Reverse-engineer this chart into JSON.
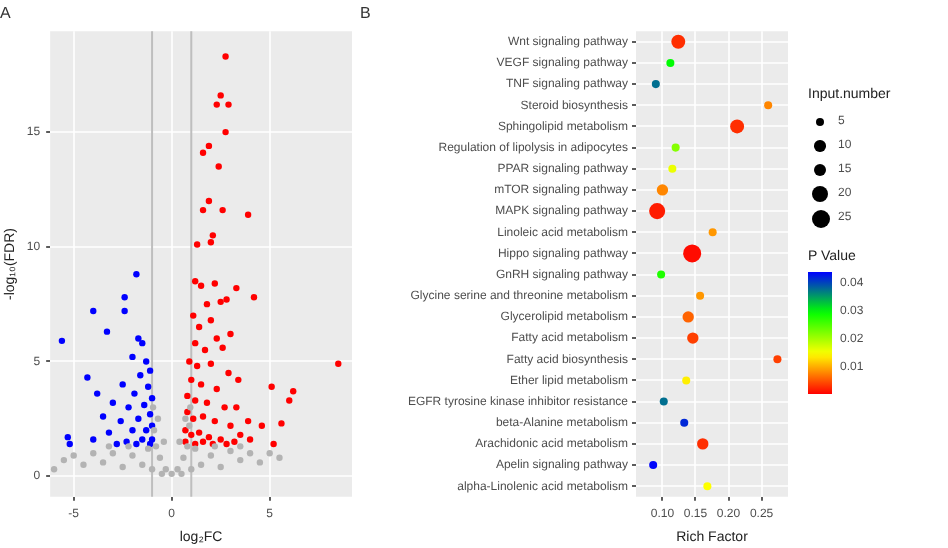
{
  "chart_data": [
    {
      "type": "scatter",
      "title": "A",
      "xlabel": "log₂FC",
      "ylabel": "-log₁₀(FDR)",
      "xlim": [
        -6.2,
        9.2
      ],
      "xticks": [
        -5,
        0,
        5
      ],
      "ylim": [
        -0.9,
        19.4
      ],
      "yticks": [
        0,
        5,
        10,
        15
      ],
      "grid": true,
      "legend": false,
      "marker": "circle",
      "ref_lines": [
        {
          "axis": "x",
          "value": -1,
          "color": "#bebebe"
        },
        {
          "axis": "x",
          "value": 1,
          "color": "#bebebe"
        }
      ],
      "series": [
        {
          "color": "#b3b3b3",
          "x": [
            0,
            -0.3,
            0.3,
            -0.6,
            0.6,
            -0.8,
            0.8,
            -0.9,
            0.9,
            -0.95,
            0.95,
            -1.5,
            1.5,
            -2,
            2,
            -2.5,
            2.5,
            -3,
            3,
            -3.5,
            3.5,
            -4,
            4,
            -4.5,
            4.5,
            -5,
            5,
            -1.2,
            1.2,
            -0.5,
            0.5,
            -1,
            1,
            -2.2,
            2.2,
            -3.2,
            3.5,
            5.5,
            -5.5,
            -0.4,
            0.4,
            -0.7,
            0.7,
            -6
          ],
          "values": [
            0.1,
            0.3,
            0.3,
            0.8,
            0.8,
            1.3,
            1.3,
            2.0,
            2.2,
            3.0,
            3.0,
            0.5,
            0.5,
            0.9,
            0.9,
            0.4,
            0.4,
            1.0,
            1.1,
            0.6,
            0.7,
            1.0,
            1.0,
            0.5,
            0.6,
            0.9,
            1.0,
            1.2,
            1.2,
            0.1,
            0.1,
            0.3,
            0.3,
            1.3,
            1.3,
            1.3,
            1.3,
            0.8,
            0.7,
            1.5,
            1.5,
            2.5,
            2.5,
            0.3
          ]
        },
        {
          "color": "#0000ff",
          "x": [
            -5.6,
            -4.0,
            -3.3,
            -2.4,
            -2.4,
            -1.8,
            -4.3,
            -3.8,
            -5.3,
            -5.2,
            -1.7,
            -1.5,
            -2.0,
            -1.3,
            -1.1,
            -1.6,
            -2.5,
            -1.2,
            -1.9,
            -3.0,
            -1.0,
            -1.4,
            -2.2,
            -3.5,
            -1.1,
            -1.7,
            -2.6,
            -1.0,
            -1.3,
            -2.0,
            -3.2,
            -1.0,
            -1.5,
            -2.3,
            -4.0,
            -1.1,
            -1.8,
            -2.8
          ],
          "values": [
            5.9,
            7.2,
            6.3,
            7.8,
            7.2,
            8.8,
            4.3,
            3.6,
            1.7,
            1.4,
            6.0,
            5.8,
            5.2,
            5.0,
            4.6,
            4.4,
            4.0,
            3.9,
            3.6,
            3.2,
            3.4,
            3.1,
            3.0,
            2.6,
            2.7,
            2.5,
            2.4,
            2.2,
            2.0,
            2.0,
            1.9,
            1.6,
            1.6,
            1.5,
            1.6,
            1.4,
            1.4,
            1.4
          ]
        },
        {
          "color": "#ff0000",
          "x": [
            2.75,
            2.5,
            2.3,
            2.9,
            2.75,
            1.9,
            1.6,
            2.4,
            1.9,
            1.6,
            2.6,
            3.9,
            2.1,
            1.3,
            2.0,
            3.3,
            4.2,
            8.5,
            5.1,
            6.2,
            6.0,
            5.6,
            5.2,
            4.6,
            3.9,
            1.2,
            1.5,
            2.2,
            1.8,
            2.5,
            2.8,
            1.1,
            1.4,
            2.0,
            2.3,
            3.0,
            1.2,
            1.7,
            2.6,
            0.9,
            1.3,
            2.0,
            2.9,
            3.4,
            1.0,
            1.5,
            2.3,
            0.8,
            1.2,
            1.8,
            2.7,
            3.3,
            0.8,
            1.1,
            1.6,
            2.2,
            3.0,
            0.7,
            1.0,
            1.4,
            1.9,
            2.5,
            3.5,
            0.7,
            1.2,
            1.6,
            2.1,
            2.8,
            3.2,
            4.0
          ],
          "values": [
            18.3,
            16.6,
            16.2,
            16.2,
            15.0,
            14.4,
            14.1,
            13.5,
            12.0,
            11.6,
            11.6,
            11.4,
            10.5,
            10.1,
            10.2,
            8.2,
            7.8,
            4.9,
            3.9,
            3.7,
            3.3,
            2.3,
            1.4,
            2.2,
            2.4,
            8.5,
            8.3,
            8.4,
            7.5,
            7.6,
            7.7,
            7.0,
            6.5,
            6.8,
            6.0,
            6.2,
            5.8,
            5.5,
            5.6,
            5.0,
            4.8,
            4.9,
            4.5,
            4.2,
            4.2,
            4.0,
            3.8,
            3.5,
            3.3,
            3.2,
            3.0,
            3.0,
            2.8,
            2.5,
            2.6,
            2.4,
            2.2,
            2.0,
            1.8,
            1.9,
            1.7,
            1.6,
            1.8,
            1.5,
            1.4,
            1.5,
            1.4,
            1.4,
            1.5,
            1.6
          ]
        }
      ]
    },
    {
      "type": "bubble",
      "title": "B",
      "orientation": "horizontal",
      "xlabel": "Rich Factor",
      "grid": true,
      "legend_title": "Input.number",
      "clabel": "P Value",
      "categories": [
        "Wnt signaling pathway",
        "VEGF signaling pathway",
        "TNF signaling pathway",
        "Steroid biosynthesis",
        "Sphingolipid metabolism",
        "Regulation of lipolysis in adipocytes",
        "PPAR signaling pathway",
        "mTOR signaling pathway",
        "MAPK signaling pathway",
        "Linoleic acid metabolism",
        "Hippo signaling pathway",
        "GnRH signaling pathway",
        "Glycine serine and threonine metabolism",
        "Glycerolipid metabolism",
        "Fatty acid metabolism",
        "Fatty acid biosynthesis",
        "Ether lipid metabolism",
        "EGFR tyrosine kinase inhibitor resistance",
        "beta-Alanine metabolism",
        "Arachidonic acid metabolism",
        "Apelin signaling pathway",
        "alpha-Linolenic acid metabolism"
      ],
      "values": [
        0.124,
        0.112,
        0.09,
        0.26,
        0.213,
        0.12,
        0.115,
        0.1,
        0.092,
        0.176,
        0.145,
        0.098,
        0.157,
        0.139,
        0.146,
        0.274,
        0.136,
        0.102,
        0.133,
        0.161,
        0.086,
        0.168
      ],
      "sizes": [
        15,
        5,
        5,
        5,
        15,
        5,
        5,
        10,
        20,
        5,
        25,
        5,
        5,
        10,
        10,
        5,
        5,
        5,
        5,
        10,
        5,
        5
      ],
      "cvalues": [
        0.003,
        0.03,
        0.038,
        0.008,
        0.003,
        0.022,
        0.016,
        0.008,
        0.002,
        0.009,
        0.001,
        0.028,
        0.009,
        0.006,
        0.004,
        0.004,
        0.014,
        0.038,
        0.042,
        0.003,
        0.044,
        0.015
      ],
      "size_legend": [
        5,
        10,
        15,
        20,
        25
      ],
      "clim": [
        0.0004,
        0.0443
      ],
      "cticks": [
        0.01,
        0.02,
        0.03,
        0.04
      ],
      "xlim": [
        0.06,
        0.29
      ],
      "xticks": [
        {
          "value": 0.1,
          "label": "0.10"
        },
        {
          "value": 0.15,
          "label": "0.15"
        },
        {
          "value": 0.2,
          "label": "0.20"
        },
        {
          "value": 0.25,
          "label": "0.25"
        }
      ]
    }
  ]
}
